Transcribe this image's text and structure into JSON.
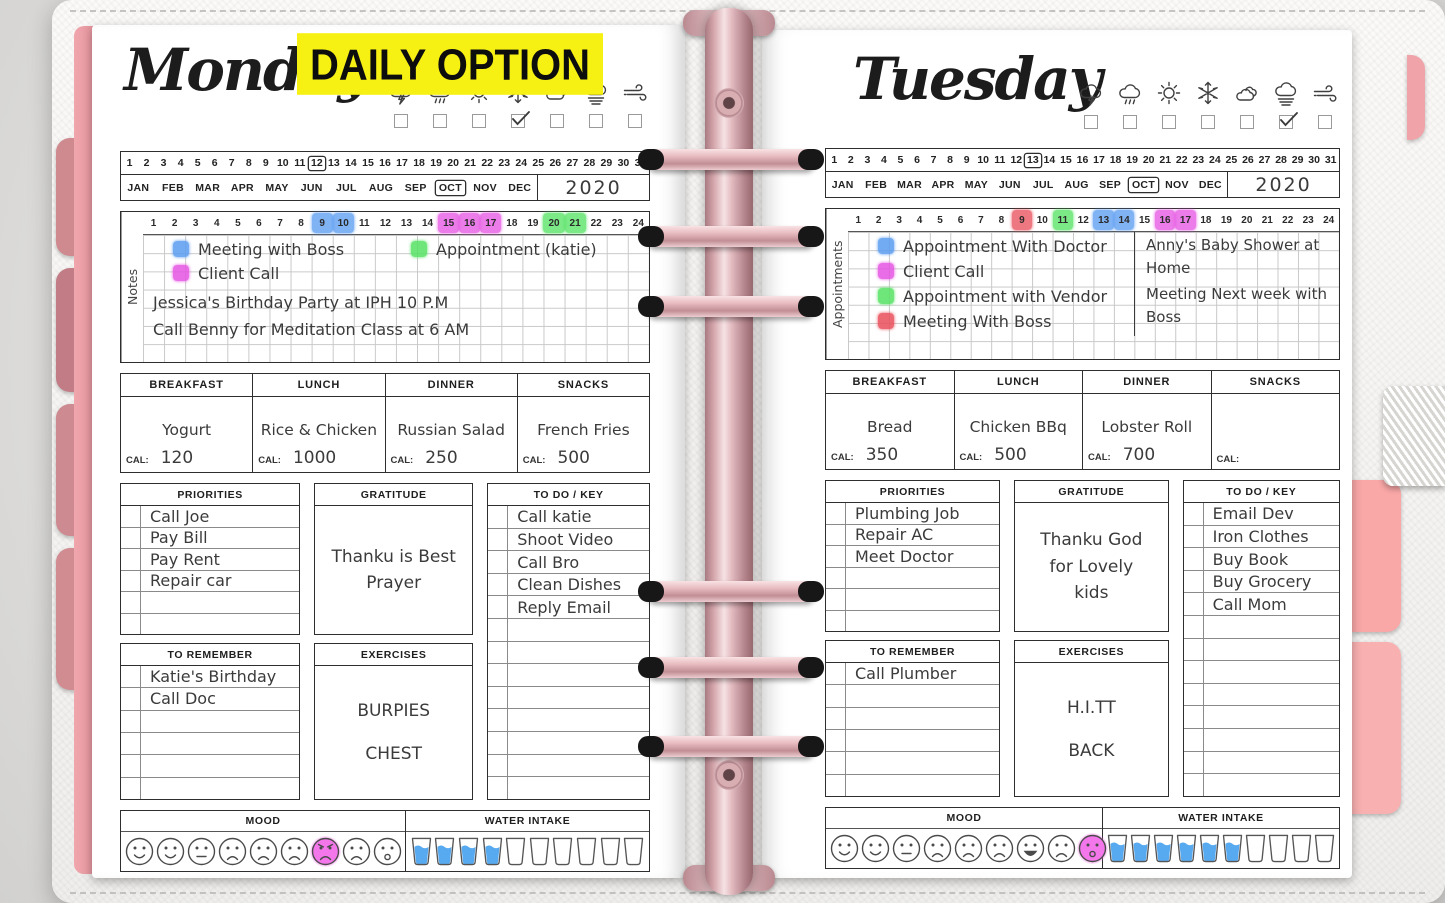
{
  "banner": {
    "text": "DAILY OPTION"
  },
  "calendar": {
    "day_numbers": [
      "1",
      "2",
      "3",
      "4",
      "5",
      "6",
      "7",
      "8",
      "9",
      "10",
      "11",
      "12",
      "13",
      "14",
      "15",
      "16",
      "17",
      "18",
      "19",
      "20",
      "21",
      "22",
      "23",
      "24",
      "25",
      "26",
      "27",
      "28",
      "29",
      "30",
      "31"
    ],
    "months": [
      "JAN",
      "FEB",
      "MAR",
      "APR",
      "MAY",
      "JUN",
      "JUL",
      "AUG",
      "SEP",
      "OCT",
      "NOV",
      "DEC"
    ],
    "year": "2020"
  },
  "hours": [
    "1",
    "2",
    "3",
    "4",
    "5",
    "6",
    "7",
    "8",
    "9",
    "10",
    "11",
    "12",
    "13",
    "14",
    "15",
    "16",
    "17",
    "18",
    "19",
    "20",
    "21",
    "22",
    "23",
    "24"
  ],
  "weather_icons": [
    "storm-icon",
    "rain-icon",
    "sun-icon",
    "snowflake-icon",
    "clouds-icon",
    "fog-icon",
    "wind-icon"
  ],
  "labels": {
    "cal": "CAL:"
  },
  "colors": {
    "blue": "#5a9cf1",
    "magenta": "#e554e2",
    "green": "#55e263",
    "red": "#e94f5b",
    "yellow": "#f6f013",
    "select_pink": "#ef5fe4",
    "water_blue": "#4aa3ef"
  },
  "days": [
    {
      "title": "Monday",
      "side_label": "Notes",
      "selected_date": "12",
      "selected_month": "OCT",
      "weather_checked": 3,
      "hour_highlights": {
        "9": "blue",
        "10": "blue",
        "15": "magenta",
        "16": "magenta",
        "17": "magenta",
        "20": "green",
        "21": "green"
      },
      "legend_rows": [
        [
          {
            "color": "blue",
            "label": "Meeting with Boss"
          },
          {
            "color": "green",
            "label": "Appointment (katie)"
          }
        ],
        [
          {
            "color": "magenta",
            "label": "Client Call"
          }
        ]
      ],
      "notes": [
        "Jessica's Birthday Party at IPH  10 P.M",
        "Call Benny for Meditation Class at 6 AM"
      ],
      "meals": [
        {
          "name": "BREAKFAST",
          "food": "Yogurt",
          "cal": "120"
        },
        {
          "name": "LUNCH",
          "food": "Rice & Chicken",
          "cal": "1000"
        },
        {
          "name": "DINNER",
          "food": "Russian Salad",
          "cal": "250"
        },
        {
          "name": "SNACKS",
          "food": "French Fries",
          "cal": "500"
        }
      ],
      "priorities": {
        "title": "PRIORITIES",
        "items": [
          "Call Joe",
          "Pay Bill",
          "Pay Rent",
          "Repair car"
        ]
      },
      "gratitude": {
        "title": "GRATITUDE",
        "text": "Thanku is Best Prayer"
      },
      "todo": {
        "title": "TO DO / KEY",
        "items": [
          "Call katie",
          "Shoot Video",
          "Call Bro",
          "Clean Dishes",
          "Reply Email"
        ]
      },
      "remember": {
        "title": "TO REMEMBER",
        "items": [
          "Katie's Birthday",
          "Call Doc"
        ]
      },
      "exercises": {
        "title": "EXERCISES",
        "items": [
          "BURPIES",
          "CHEST"
        ]
      },
      "mood": {
        "title": "MOOD",
        "faces": [
          "smile",
          "smile",
          "neutral",
          "frown",
          "frown",
          "frown",
          "angry",
          "frown",
          "surprised"
        ],
        "selected": 6
      },
      "water": {
        "title": "WATER INTAKE",
        "glasses": 10,
        "filled": 4
      }
    },
    {
      "title": "Tuesday",
      "side_label": "Appointments",
      "selected_date": "13",
      "selected_month": "OCT",
      "weather_checked": 5,
      "hour_highlights": {
        "9": "red",
        "11": "green",
        "13": "blue",
        "14": "blue",
        "16": "magenta",
        "17": "magenta"
      },
      "legend_rows": [
        [
          {
            "color": "blue",
            "label": "Appointment With Doctor"
          }
        ],
        [
          {
            "color": "magenta",
            "label": "Client Call"
          }
        ],
        [
          {
            "color": "green",
            "label": "Appointment with Vendor"
          }
        ],
        [
          {
            "color": "red",
            "label": "Meeting With Boss"
          }
        ]
      ],
      "side_notes": [
        "Anny's Baby Shower at Home",
        "Meeting Next week with Boss"
      ],
      "meals": [
        {
          "name": "BREAKFAST",
          "food": "Bread",
          "cal": "350"
        },
        {
          "name": "LUNCH",
          "food": "Chicken BBq",
          "cal": "500"
        },
        {
          "name": "DINNER",
          "food": "Lobster Roll",
          "cal": "700"
        },
        {
          "name": "SNACKS",
          "food": "",
          "cal": ""
        }
      ],
      "priorities": {
        "title": "PRIORITIES",
        "items": [
          "Plumbing Job",
          "Repair AC",
          "Meet Doctor"
        ]
      },
      "gratitude": {
        "title": "GRATITUDE",
        "text": "Thanku God for Lovely kids"
      },
      "todo": {
        "title": "TO DO / KEY",
        "items": [
          "Email Dev",
          "Iron Clothes",
          "Buy Book",
          "Buy Grocery",
          "Call Mom"
        ]
      },
      "remember": {
        "title": "TO REMEMBER",
        "items": [
          "Call Plumber"
        ]
      },
      "exercises": {
        "title": "EXERCISES",
        "items": [
          "H.I.TT",
          "BACK"
        ]
      },
      "mood": {
        "title": "MOOD",
        "faces": [
          "smile",
          "smile",
          "neutral",
          "frown",
          "frown",
          "frown",
          "laugh",
          "frown",
          "surprised"
        ],
        "selected": 8
      },
      "water": {
        "title": "WATER INTAKE",
        "glasses": 10,
        "filled": 6
      }
    }
  ]
}
